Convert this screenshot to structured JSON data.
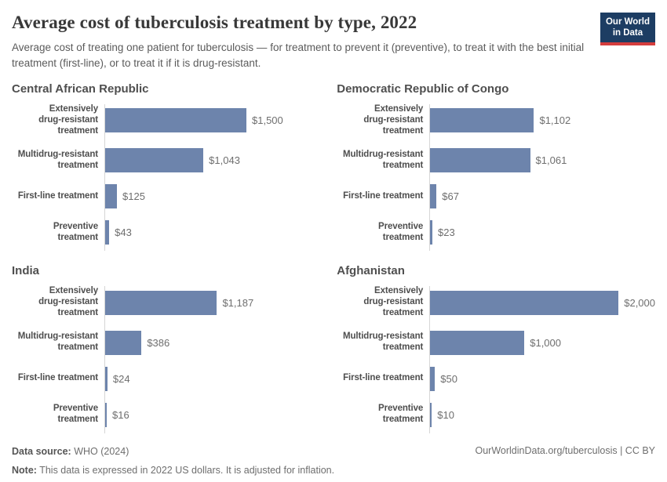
{
  "header": {
    "title": "Average cost of tuberculosis treatment by type, 2022",
    "subtitle": "Average cost of treating one patient for tuberculosis — for treatment to prevent it (preventive), to treat it with the best initial treatment (first-line), or to treat it if it is drug-resistant.",
    "logo": {
      "line1": "Our World",
      "line2": "in Data"
    }
  },
  "colors": {
    "bar": "#6d84ac",
    "axis_line": "#d6d6d6",
    "logo_bg": "#1d3d63",
    "logo_stripe": "#d43d3d"
  },
  "chart_data": {
    "type": "bar",
    "orientation": "horizontal",
    "title": "Average cost of tuberculosis treatment by type, 2022",
    "unit": "2022 US dollars",
    "value_axis_max": 2000,
    "grid": false,
    "legend": "none",
    "categories": [
      "Extensively drug-resistant treatment",
      "Multidrug-resistant treatment",
      "First-line treatment",
      "Preventive treatment"
    ],
    "category_display": [
      [
        "Extensively",
        "drug-resistant",
        "treatment"
      ],
      [
        "Multidrug-resistant",
        "treatment"
      ],
      [
        "First-line treatment"
      ],
      [
        "Preventive",
        "treatment"
      ]
    ],
    "panels": [
      {
        "title": "Central African Republic",
        "values": [
          1500,
          1043,
          125,
          43
        ],
        "value_labels": [
          "$1,500",
          "$1,043",
          "$125",
          "$43"
        ]
      },
      {
        "title": "Democratic Republic of Congo",
        "values": [
          1102,
          1061,
          67,
          23
        ],
        "value_labels": [
          "$1,102",
          "$1,061",
          "$67",
          "$23"
        ]
      },
      {
        "title": "India",
        "values": [
          1187,
          386,
          24,
          16
        ],
        "value_labels": [
          "$1,187",
          "$386",
          "$24",
          "$16"
        ]
      },
      {
        "title": "Afghanistan",
        "values": [
          2000,
          1000,
          50,
          10
        ],
        "value_labels": [
          "$2,000",
          "$1,000",
          "$50",
          "$10"
        ]
      }
    ]
  },
  "footer": {
    "source_label": "Data source:",
    "source_text": " WHO (2024)",
    "note_label": "Note:",
    "note_text": " This data is expressed in 2022 US dollars. It is adjusted for inflation.",
    "right_text": "OurWorldinData.org/tuberculosis | CC BY"
  }
}
